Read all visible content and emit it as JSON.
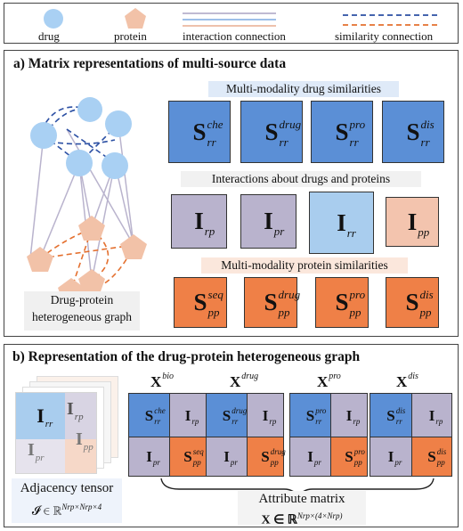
{
  "legend": {
    "drug": "drug",
    "protein": "protein",
    "interaction": "interaction connection",
    "similarity": "similarity connection"
  },
  "panel_a": {
    "title": "a) Matrix representations of multi-source data",
    "graph_caption_line1": "Drug-protein",
    "graph_caption_line2": "heterogeneous graph",
    "band_drug_sim": "Multi-modality drug similarities",
    "band_interactions": "Interactions about drugs and proteins",
    "band_protein_sim": "Multi-modality protein similarities",
    "drug_sims": [
      {
        "main": "S",
        "sup": "che",
        "sub": "rr"
      },
      {
        "main": "S",
        "sup": "drug",
        "sub": "rr"
      },
      {
        "main": "S",
        "sup": "pro",
        "sub": "rr"
      },
      {
        "main": "S",
        "sup": "dis",
        "sub": "rr"
      }
    ],
    "interactions": [
      {
        "main": "I",
        "sub": "rp"
      },
      {
        "main": "I",
        "sub": "pr"
      },
      {
        "main": "I",
        "sub": "rr"
      },
      {
        "main": "I",
        "sub": "pp"
      }
    ],
    "protein_sims": [
      {
        "main": "S",
        "sup": "seq",
        "sub": "pp"
      },
      {
        "main": "S",
        "sup": "drug",
        "sub": "pp"
      },
      {
        "main": "S",
        "sup": "pro",
        "sub": "pp"
      },
      {
        "main": "S",
        "sup": "dis",
        "sub": "pp"
      }
    ]
  },
  "panel_b": {
    "title": "b)  Representation of the drug-protein heterogeneous graph",
    "tensor_labels": {
      "rr": "rr",
      "rp": "rp",
      "pr": "pr",
      "pp": "pp",
      "I": "I"
    },
    "adjacency_caption": "Adjacency tensor",
    "adjacency_formula": "𝓘 ∈ ℝ",
    "adjacency_exp": "Nrp×Nrp×4",
    "attribute_caption": "Attribute matrix",
    "attribute_formula": "X ∈ ℝ",
    "attribute_exp": "Nrp×(4×Nrp)",
    "matrices": [
      {
        "name": "X",
        "sup": "bio",
        "rr_sup": "che",
        "pp_sup": "seq"
      },
      {
        "name": "X",
        "sup": "drug",
        "rr_sup": "drug",
        "pp_sup": "drug"
      },
      {
        "name": "X",
        "sup": "pro",
        "rr_sup": "pro",
        "pp_sup": "pro"
      },
      {
        "name": "X",
        "sup": "dis",
        "rr_sup": "dis",
        "pp_sup": "dis"
      }
    ],
    "sub_rr": "rr",
    "sub_rp": "rp",
    "sub_pr": "pr",
    "sub_pp": "pp",
    "S": "S",
    "I": "I"
  },
  "colors": {
    "drug_blue": "#5b8fd6",
    "drug_light": "#a9cdee",
    "protein_orange": "#ef8047",
    "protein_light": "#f3c4ae",
    "interaction_gray": "#b9b3cd",
    "node_blue": "#a9d0f3",
    "node_peach": "#f2c2a8"
  }
}
